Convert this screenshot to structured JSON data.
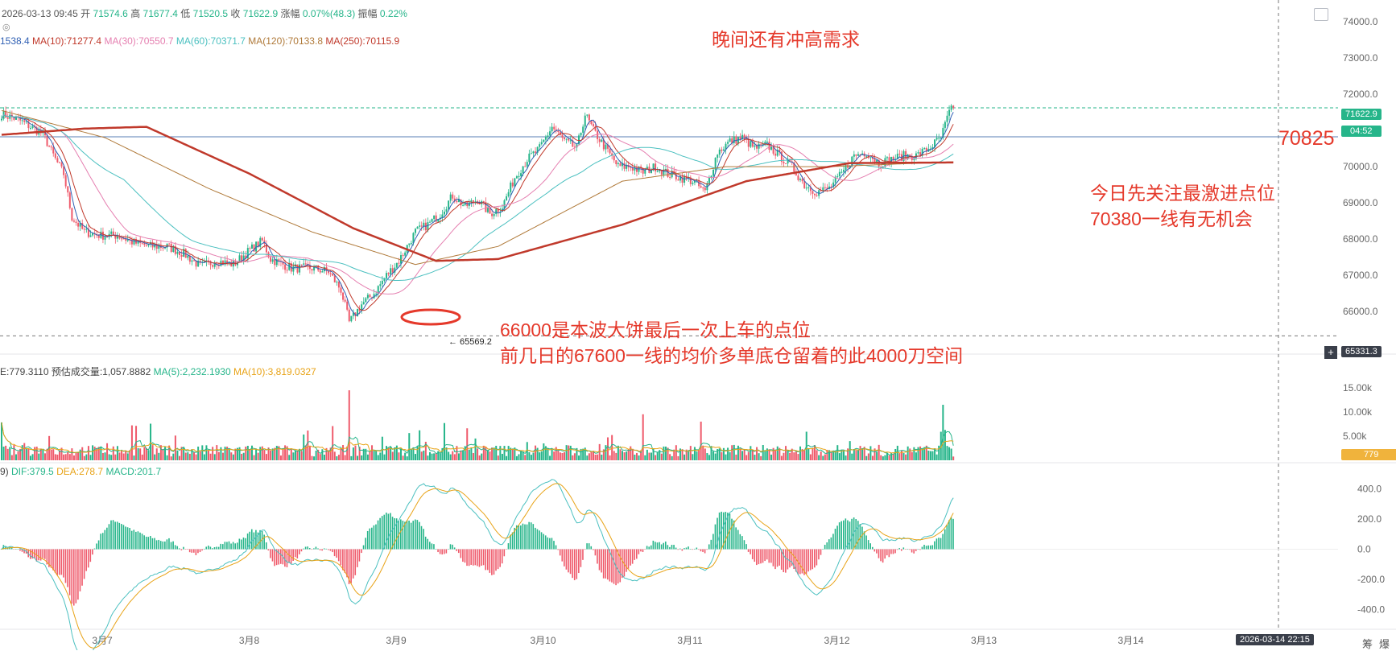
{
  "header": {
    "datetime": "2026-03-13 09:45",
    "open_label": "开",
    "open": "71574.6",
    "high_label": "高",
    "high": "71677.4",
    "low_label": "低",
    "low": "71520.5",
    "close_label": "收",
    "close": "71622.9",
    "change_label": "涨幅",
    "change": "0.07%(48.3)",
    "amp_label": "振幅",
    "amp": "0.22%"
  },
  "ma_legend": [
    {
      "text": "1538.4",
      "color": "#2f5fb3"
    },
    {
      "text": "MA(10):71277.4",
      "color": "#c0392b"
    },
    {
      "text": "MA(30):70550.7",
      "color": "#e57fb0"
    },
    {
      "text": "MA(60):70371.7",
      "color": "#4bc0c0"
    },
    {
      "text": "MA(120):70133.8",
      "color": "#b07a3a"
    },
    {
      "text": "MA(250):70115.9",
      "color": "#c0392b"
    }
  ],
  "volume_legend": [
    {
      "text": "E:779.3110",
      "color": "#444444"
    },
    {
      "text": "预估成交量:1,057.8882",
      "color": "#444444"
    },
    {
      "text": "MA(5):2,232.1930",
      "color": "#26b58a"
    },
    {
      "text": "MA(10):3,819.0327",
      "color": "#e8a317"
    }
  ],
  "macd_legend": [
    {
      "text": "9)",
      "color": "#444444"
    },
    {
      "text": "DIF:379.5",
      "color": "#26b58a"
    },
    {
      "text": "DEA:278.7",
      "color": "#e8a317"
    },
    {
      "text": "MACD:201.7",
      "color": "#26b58a"
    }
  ],
  "annotations": {
    "top_note": "晚间还有冲高需求",
    "level_label": "70825",
    "right_note_1": "今日先关注最激进点位",
    "right_note_2": "70380一线有无机会",
    "bottom_note_1": "66000是本波大饼最后一次上车的点位",
    "bottom_note_2": "前几日的67600一线的均价多单底仓留着的此4000刀空间",
    "low_marker": "← 65569.2"
  },
  "tags": {
    "last_price": "71622.9",
    "countdown": "04:52",
    "crosshair_price": "65331.3",
    "volume_last": "779",
    "crosshair_time": "2026-03-14 22:15"
  },
  "footer_buttons": [
    "筹",
    "爆"
  ],
  "colors": {
    "up": "#26b58a",
    "down": "#ef5a6b",
    "level": "#5a7fb5",
    "annotation": "#e5392b"
  },
  "chart_data": {
    "type": "candlestick-with-volume-and-macd",
    "x_ticks": [
      "3月7",
      "3月8",
      "3月9",
      "3月10",
      "3月11",
      "3月12",
      "3月13",
      "3月14"
    ],
    "price_axis": {
      "ticks": [
        "74000.0",
        "73000.0",
        "72000.0",
        "71000.0",
        "70000.0",
        "69000.0",
        "68000.0",
        "67000.0",
        "66000.0"
      ],
      "ylim": [
        65050,
        74200
      ]
    },
    "volume_axis": {
      "ticks": [
        "15.00k",
        "10.00k",
        "5.00k"
      ],
      "ylim": [
        0,
        17000
      ]
    },
    "macd_axis": {
      "ticks": [
        "400.0",
        "200.0",
        "0.0",
        "-200.0",
        "-400.0"
      ],
      "ylim": [
        -520,
        520
      ]
    },
    "horizontal_level": 70825,
    "price_path_keypoints": [
      [
        0,
        71450
      ],
      [
        8,
        71300
      ],
      [
        14,
        71100
      ],
      [
        20,
        70900
      ],
      [
        26,
        70200
      ],
      [
        30,
        69800
      ],
      [
        34,
        68600
      ],
      [
        40,
        68200
      ],
      [
        48,
        68100
      ],
      [
        56,
        68100
      ],
      [
        64,
        67900
      ],
      [
        72,
        67800
      ],
      [
        80,
        67800
      ],
      [
        88,
        67600
      ],
      [
        96,
        67250
      ],
      [
        104,
        67400
      ],
      [
        112,
        67300
      ],
      [
        120,
        67700
      ],
      [
        126,
        67950
      ],
      [
        130,
        67450
      ],
      [
        140,
        67200
      ],
      [
        150,
        67200
      ],
      [
        158,
        67100
      ],
      [
        164,
        66600
      ],
      [
        168,
        65700
      ],
      [
        174,
        66200
      ],
      [
        180,
        66500
      ],
      [
        186,
        67000
      ],
      [
        192,
        67400
      ],
      [
        200,
        68200
      ],
      [
        206,
        68400
      ],
      [
        212,
        68700
      ],
      [
        218,
        69200
      ],
      [
        224,
        68900
      ],
      [
        230,
        69100
      ],
      [
        236,
        68700
      ],
      [
        242,
        68900
      ],
      [
        248,
        69700
      ],
      [
        254,
        70200
      ],
      [
        260,
        70500
      ],
      [
        266,
        71100
      ],
      [
        272,
        70700
      ],
      [
        278,
        70500
      ],
      [
        282,
        71450
      ],
      [
        286,
        71000
      ],
      [
        292,
        70500
      ],
      [
        298,
        70000
      ],
      [
        304,
        70000
      ],
      [
        310,
        69850
      ],
      [
        316,
        70000
      ],
      [
        322,
        69800
      ],
      [
        328,
        69700
      ],
      [
        334,
        69600
      ],
      [
        340,
        69300
      ],
      [
        346,
        70400
      ],
      [
        352,
        70700
      ],
      [
        358,
        70800
      ],
      [
        364,
        70500
      ],
      [
        370,
        70600
      ],
      [
        376,
        70300
      ],
      [
        382,
        70000
      ],
      [
        388,
        69500
      ],
      [
        394,
        69300
      ],
      [
        400,
        69400
      ],
      [
        406,
        69800
      ],
      [
        412,
        70300
      ],
      [
        418,
        70400
      ],
      [
        424,
        70100
      ],
      [
        430,
        70200
      ],
      [
        436,
        70300
      ],
      [
        442,
        70300
      ],
      [
        448,
        70500
      ],
      [
        454,
        70800
      ],
      [
        458,
        71500
      ],
      [
        460,
        71622.9
      ]
    ],
    "ma_legend_series": [
      "MA(10)",
      "MA(30)",
      "MA(60)",
      "MA(120)",
      "MA(250)"
    ],
    "ma250_keypoints": [
      [
        0,
        70880
      ],
      [
        40,
        71050
      ],
      [
        70,
        71100
      ],
      [
        120,
        69800
      ],
      [
        170,
        68300
      ],
      [
        210,
        67400
      ],
      [
        240,
        67450
      ],
      [
        300,
        68400
      ],
      [
        360,
        69600
      ],
      [
        410,
        70100
      ],
      [
        460,
        70115.9
      ]
    ],
    "ma120_keypoints": [
      [
        0,
        71550
      ],
      [
        50,
        70800
      ],
      [
        100,
        69400
      ],
      [
        150,
        68200
      ],
      [
        200,
        67300
      ],
      [
        240,
        67800
      ],
      [
        300,
        69600
      ],
      [
        350,
        70000
      ],
      [
        400,
        70000
      ],
      [
        460,
        70133.8
      ]
    ],
    "last_volume": 779.311,
    "macd_last": {
      "dif": 379.5,
      "dea": 278.7,
      "macd": 201.7
    }
  }
}
